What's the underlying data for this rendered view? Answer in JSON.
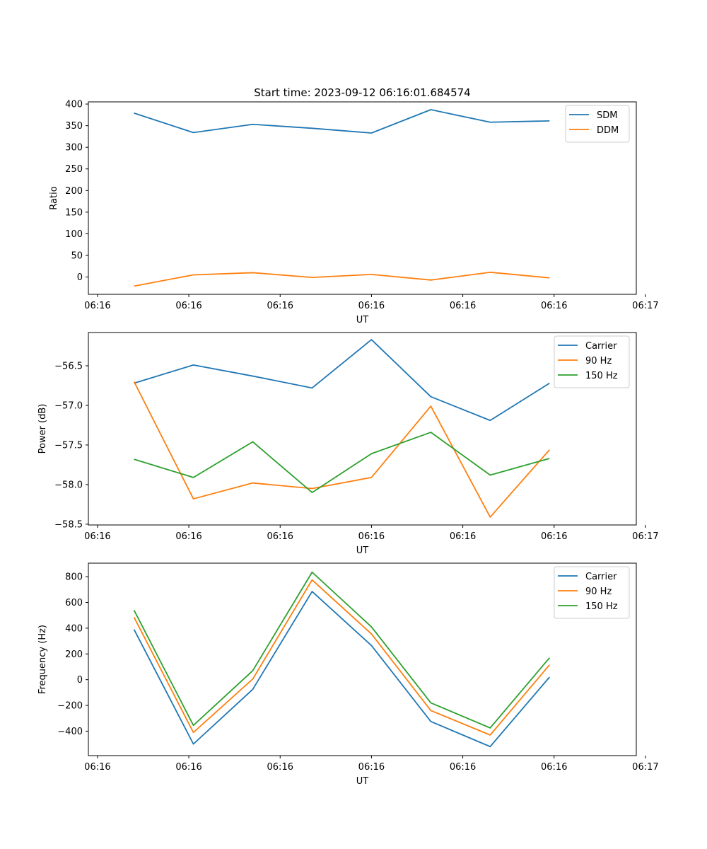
{
  "title": "Start time: 2023-09-12 06:16:01.684574",
  "colors": {
    "blue": "#1f77b4",
    "orange": "#ff7f0e",
    "green": "#2ca02c"
  },
  "chart_data": [
    {
      "type": "line",
      "xlabel": "UT",
      "ylabel": "Ratio",
      "x": [
        0.4,
        1.05,
        1.7,
        2.35,
        3.0,
        3.65,
        4.3,
        4.95
      ],
      "xlim": [
        -0.1,
        5.9
      ],
      "xticks": [
        0,
        1,
        2,
        3,
        4,
        5,
        6
      ],
      "xtick_labels": [
        "06:16",
        "06:16",
        "06:16",
        "06:16",
        "06:16",
        "06:16",
        "06:17"
      ],
      "ylim": [
        -40,
        405
      ],
      "yticks": [
        0,
        50,
        100,
        150,
        200,
        250,
        300,
        350,
        400
      ],
      "ytick_labels": [
        "0",
        "50",
        "100",
        "150",
        "200",
        "250",
        "300",
        "350",
        "400"
      ],
      "legend": "top-right",
      "series": [
        {
          "name": "SDM",
          "color": "#1f77b4",
          "values": [
            379,
            334,
            353,
            344,
            333,
            387,
            358,
            361
          ]
        },
        {
          "name": "DDM",
          "color": "#ff7f0e",
          "values": [
            -21,
            5,
            10,
            -1,
            6,
            -7,
            11,
            -2
          ]
        }
      ]
    },
    {
      "type": "line",
      "xlabel": "UT",
      "ylabel": "Power (dB)",
      "x": [
        0.4,
        1.05,
        1.7,
        2.35,
        3.0,
        3.65,
        4.3,
        4.95
      ],
      "xlim": [
        -0.1,
        5.9
      ],
      "xticks": [
        0,
        1,
        2,
        3,
        4,
        5,
        6
      ],
      "xtick_labels": [
        "06:16",
        "06:16",
        "06:16",
        "06:16",
        "06:16",
        "06:16",
        "06:17"
      ],
      "ylim": [
        -58.51,
        -56.08
      ],
      "yticks": [
        -58.5,
        -58.0,
        -57.5,
        -57.0,
        -56.5
      ],
      "ytick_labels": [
        "−58.5",
        "−58.0",
        "−57.5",
        "−57.0",
        "−56.5"
      ],
      "legend": "top-right",
      "series": [
        {
          "name": "Carrier",
          "color": "#1f77b4",
          "values": [
            -56.72,
            -56.49,
            -56.63,
            -56.78,
            -56.17,
            -56.89,
            -57.19,
            -56.72
          ]
        },
        {
          "name": "90 Hz",
          "color": "#ff7f0e",
          "values": [
            -56.7,
            -58.18,
            -57.98,
            -58.05,
            -57.91,
            -57.01,
            -58.41,
            -57.56
          ]
        },
        {
          "name": "150 Hz",
          "color": "#2ca02c",
          "values": [
            -57.68,
            -57.91,
            -57.46,
            -58.1,
            -57.61,
            -57.34,
            -57.88,
            -57.67
          ]
        }
      ]
    },
    {
      "type": "line",
      "xlabel": "UT",
      "ylabel": "Frequency (Hz)",
      "x": [
        0.4,
        1.05,
        1.7,
        2.35,
        3.0,
        3.65,
        4.3,
        4.95
      ],
      "xlim": [
        -0.1,
        5.9
      ],
      "xticks": [
        0,
        1,
        2,
        3,
        4,
        5,
        6
      ],
      "xtick_labels": [
        "06:16",
        "06:16",
        "06:16",
        "06:16",
        "06:16",
        "06:16",
        "06:17"
      ],
      "ylim": [
        -590,
        905
      ],
      "yticks": [
        -400,
        -200,
        0,
        200,
        400,
        600,
        800
      ],
      "ytick_labels": [
        "−400",
        "−200",
        "0",
        "200",
        "400",
        "600",
        "800"
      ],
      "legend": "top-right",
      "series": [
        {
          "name": "Carrier",
          "color": "#1f77b4",
          "values": [
            390,
            -500,
            -75,
            685,
            265,
            -325,
            -520,
            20
          ]
        },
        {
          "name": "90 Hz",
          "color": "#ff7f0e",
          "values": [
            485,
            -410,
            5,
            775,
            355,
            -240,
            -430,
            115
          ]
        },
        {
          "name": "150 Hz",
          "color": "#2ca02c",
          "values": [
            540,
            -355,
            70,
            835,
            410,
            -180,
            -375,
            170
          ]
        }
      ]
    }
  ]
}
